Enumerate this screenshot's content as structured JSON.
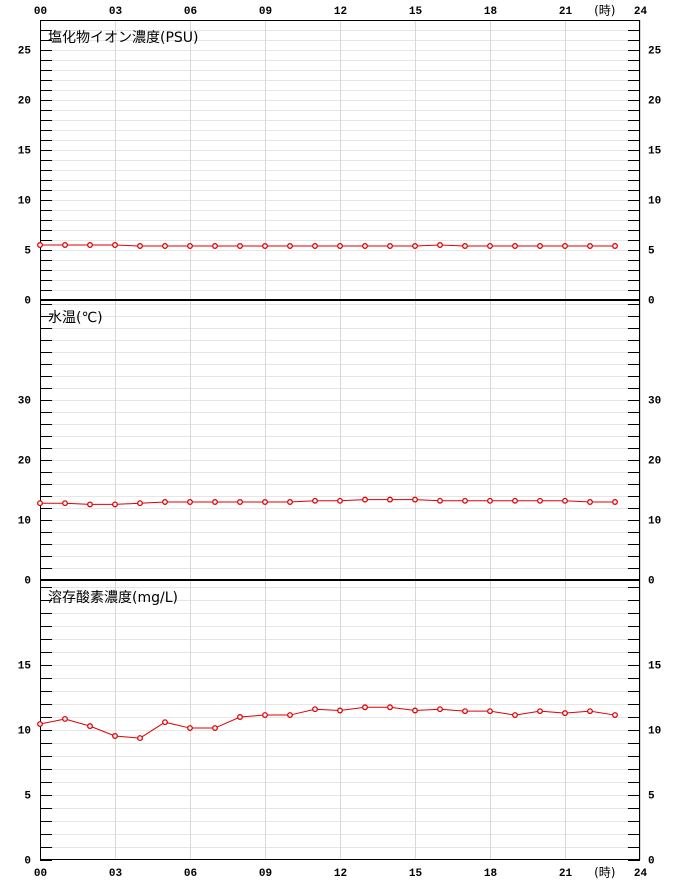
{
  "chart_data": [
    {
      "type": "line",
      "title": "塩化物イオン濃度(PSU)",
      "x_axis_position": "top",
      "x_label": "(時)",
      "x": [
        0,
        1,
        2,
        3,
        4,
        5,
        6,
        7,
        8,
        9,
        10,
        11,
        12,
        13,
        14,
        15,
        16,
        17,
        18,
        19,
        20,
        21,
        22,
        23
      ],
      "xlim": [
        0,
        24
      ],
      "xticks": [
        {
          "value": 0,
          "label": "00"
        },
        {
          "value": 3,
          "label": "03"
        },
        {
          "value": 6,
          "label": "06"
        },
        {
          "value": 9,
          "label": "09"
        },
        12,
        15,
        18,
        21,
        24
      ],
      "ylim": [
        0,
        28
      ],
      "yticks": [
        0,
        5,
        10,
        15,
        20,
        25
      ],
      "yminor": 1,
      "grid": true,
      "series": [
        {
          "color": "#e00000",
          "values": [
            5.5,
            5.5,
            5.5,
            5.5,
            5.4,
            5.4,
            5.4,
            5.4,
            5.4,
            5.4,
            5.4,
            5.4,
            5.4,
            5.4,
            5.4,
            5.4,
            5.5,
            5.4,
            5.4,
            5.4,
            5.4,
            5.4,
            5.4,
            5.4
          ]
        }
      ]
    },
    {
      "type": "line",
      "title": "水温(℃)",
      "x_axis_position": "none",
      "x": [
        0,
        1,
        2,
        3,
        4,
        5,
        6,
        7,
        8,
        9,
        10,
        11,
        12,
        13,
        14,
        15,
        16,
        17,
        18,
        19,
        20,
        21,
        22,
        23
      ],
      "xlim": [
        0,
        24
      ],
      "xticks": [
        {
          "value": 0,
          "label": "00"
        },
        {
          "value": 3,
          "label": "03"
        },
        {
          "value": 6,
          "label": "06"
        },
        {
          "value": 9,
          "label": "09"
        },
        12,
        15,
        18,
        21,
        24
      ],
      "ylim": [
        0,
        46.67
      ],
      "yticks": [
        0,
        10,
        20,
        30
      ],
      "yminor": 2,
      "grid": true,
      "series": [
        {
          "color": "#e00000",
          "values": [
            12.8,
            12.8,
            12.6,
            12.6,
            12.8,
            13,
            13,
            13,
            13,
            13,
            13,
            13.2,
            13.2,
            13.4,
            13.4,
            13.4,
            13.2,
            13.2,
            13.2,
            13.2,
            13.2,
            13.2,
            13,
            13
          ]
        }
      ]
    },
    {
      "type": "line",
      "title": "溶存酸素濃度(mg/L)",
      "x_axis_position": "bottom",
      "x_label": "(時)",
      "x": [
        0,
        1,
        2,
        3,
        4,
        5,
        6,
        7,
        8,
        9,
        10,
        11,
        12,
        13,
        14,
        15,
        16,
        17,
        18,
        19,
        20,
        21,
        22,
        23
      ],
      "xlim": [
        0,
        24
      ],
      "xticks": [
        {
          "value": 0,
          "label": "00"
        },
        {
          "value": 3,
          "label": "03"
        },
        {
          "value": 6,
          "label": "06"
        },
        {
          "value": 9,
          "label": "09"
        },
        12,
        15,
        18,
        21,
        24
      ],
      "ylim": [
        0,
        21.54
      ],
      "yticks": [
        0,
        5,
        10,
        15
      ],
      "yminor": 1,
      "grid": true,
      "series": [
        {
          "color": "#e00000",
          "values": [
            10.46,
            10.85,
            10.3,
            9.54,
            9.38,
            10.6,
            10.15,
            10.15,
            11,
            11.15,
            11.15,
            11.6,
            11.5,
            11.75,
            11.75,
            11.5,
            11.6,
            11.45,
            11.45,
            11.15,
            11.45,
            11.3,
            11.45,
            11.15
          ]
        }
      ]
    }
  ]
}
